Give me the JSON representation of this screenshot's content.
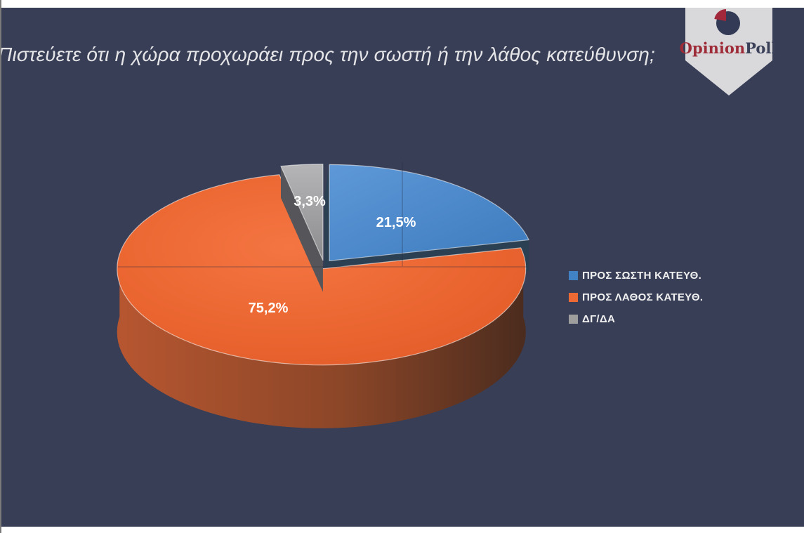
{
  "title": {
    "text": "Πιστεύετε ότι η χώρα προχωράει προς την σωστή ή την λάθος κατεύθυνση;"
  },
  "slide": {
    "background": "#383E56",
    "frame_line_color": "#7A7A7A"
  },
  "logo": {
    "brand_first": "Opinion",
    "brand_second": "Poll",
    "brand_first_color": "#9E2B38",
    "brand_second_color": "#3A4058",
    "ribbon_color": "#D9D9DB",
    "glyph_circle_color": "#333A55",
    "glyph_wedge_color": "#A1273B"
  },
  "chart_data": {
    "type": "pie",
    "style": "3d-exploded",
    "title": "Πιστεύετε ότι η χώρα προχωράει προς την σωστή ή την λάθος κατεύθυνση;",
    "labels": [
      "ΠΡΟΣ ΣΩΣΤΗ ΚΑΤΕΥΘ.",
      "ΠΡΟΣ ΛΑΘΟΣ ΚΑΤΕΥΘ.",
      "ΔΓ/ΔΑ"
    ],
    "values": [
      21.5,
      75.2,
      3.3
    ],
    "value_labels": [
      "21,5%",
      "75,2%",
      "3,3%"
    ],
    "colors": [
      "#4182C4",
      "#ED6A35",
      "#9E9E9E"
    ],
    "legend_position": "right",
    "start_angle_deg": 0,
    "direction": "clockwise"
  },
  "legend": {
    "items": [
      {
        "label": "ΠΡΟΣ ΣΩΣΤΗ ΚΑΤΕΥΘ."
      },
      {
        "label": "ΠΡΟΣ ΛΑΘΟΣ ΚΑΤΕΥΘ."
      },
      {
        "label": "ΔΓ/ΔΑ"
      }
    ]
  }
}
